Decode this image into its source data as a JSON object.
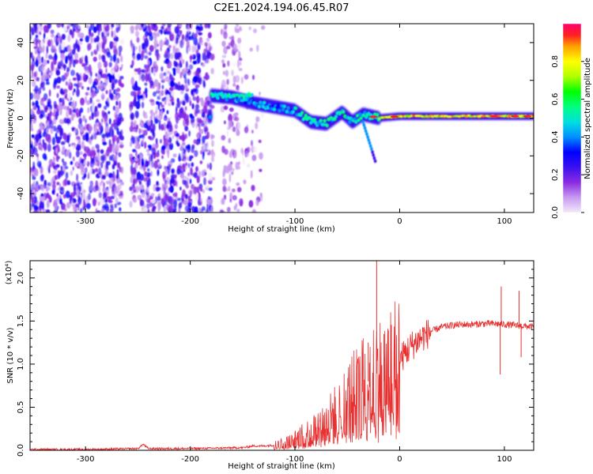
{
  "title": "C2E1.2024.194.06.45.R07",
  "chart_data": [
    {
      "type": "heatmap",
      "title": "C2E1.2024.194.06.45.R07",
      "xlabel": "Height of straight line (km)",
      "ylabel": "Frequency (Hz)",
      "xlim": [
        -353,
        128
      ],
      "ylim": [
        -50,
        50
      ],
      "x_ticks": [
        -300,
        -200,
        -100,
        0,
        100
      ],
      "y_ticks": [
        -40,
        -20,
        0,
        20,
        40
      ],
      "grid": false,
      "ridge_path": [
        {
          "x": -180,
          "y": 12
        },
        {
          "x": -160,
          "y": 11
        },
        {
          "x": -140,
          "y": 8
        },
        {
          "x": -120,
          "y": 6
        },
        {
          "x": -100,
          "y": 4
        },
        {
          "x": -85,
          "y": -2
        },
        {
          "x": -70,
          "y": -3
        },
        {
          "x": -55,
          "y": 3
        },
        {
          "x": -45,
          "y": -2
        },
        {
          "x": -35,
          "y": 2
        },
        {
          "x": -20,
          "y": 0
        },
        {
          "x": 0,
          "y": 1
        },
        {
          "x": 50,
          "y": 1
        },
        {
          "x": 100,
          "y": 1
        },
        {
          "x": 128,
          "y": 1
        }
      ],
      "colorbar": {
        "label": "Normalized spectral amplitude",
        "range": [
          0,
          1
        ],
        "ticks": [
          "0.0",
          "0.2",
          "0.4",
          "0.6",
          "0.8"
        ],
        "colors": [
          "#f4e8fb",
          "#c79af0",
          "#8a2be2",
          "#3a10f0",
          "#0000ff",
          "#0090ff",
          "#00e0e0",
          "#00ff80",
          "#00ff00",
          "#b0ff00",
          "#ffff00",
          "#ffa000",
          "#ff2020",
          "#ff0070"
        ]
      }
    },
    {
      "type": "line",
      "xlabel": "Height of straight line (km)",
      "ylabel": "SNR (10 * v/v)",
      "y_multiplier": "(x10⁴)",
      "xlim": [
        -353,
        128
      ],
      "ylim": [
        0,
        2.2
      ],
      "x_ticks": [
        -300,
        -200,
        -100,
        0,
        100
      ],
      "y_ticks": [
        "0.0",
        "0.5",
        "1.0",
        "1.5",
        "2.0"
      ],
      "grid": false,
      "color": "#e83030",
      "series_points": [
        [
          -353,
          0.01
        ],
        [
          -300,
          0.01
        ],
        [
          -250,
          0.02
        ],
        [
          -245,
          0.07
        ],
        [
          -240,
          0.02
        ],
        [
          -200,
          0.02
        ],
        [
          -150,
          0.03
        ],
        [
          -140,
          0.05
        ],
        [
          -130,
          0.05
        ],
        [
          -120,
          0.06
        ],
        [
          -110,
          0.08
        ],
        [
          -100,
          0.12
        ],
        [
          -90,
          0.18
        ],
        [
          -80,
          0.25
        ],
        [
          -70,
          0.32
        ],
        [
          -60,
          0.42
        ],
        [
          -50,
          0.55
        ],
        [
          -40,
          0.65
        ],
        [
          -30,
          0.8
        ],
        [
          -25,
          0.95
        ],
        [
          -20,
          0.85
        ],
        [
          -15,
          0.8
        ],
        [
          -10,
          0.9
        ],
        [
          -5,
          0.95
        ],
        [
          0,
          1.05
        ],
        [
          10,
          1.2
        ],
        [
          20,
          1.3
        ],
        [
          30,
          1.38
        ],
        [
          40,
          1.43
        ],
        [
          50,
          1.45
        ],
        [
          60,
          1.46
        ],
        [
          70,
          1.46
        ],
        [
          80,
          1.47
        ],
        [
          90,
          1.47
        ],
        [
          100,
          1.46
        ],
        [
          110,
          1.45
        ],
        [
          120,
          1.44
        ],
        [
          128,
          1.43
        ]
      ],
      "spikes": [
        {
          "x": -22,
          "y": 2.2
        },
        {
          "x": -30,
          "y": 1.25
        },
        {
          "x": -15,
          "y": 1.35
        },
        {
          "x": -8,
          "y": 1.45
        },
        {
          "x": 97,
          "y": 1.9
        },
        {
          "x": 96,
          "y": 0.88
        },
        {
          "x": 114,
          "y": 1.85
        },
        {
          "x": 116,
          "y": 1.08
        }
      ]
    }
  ]
}
